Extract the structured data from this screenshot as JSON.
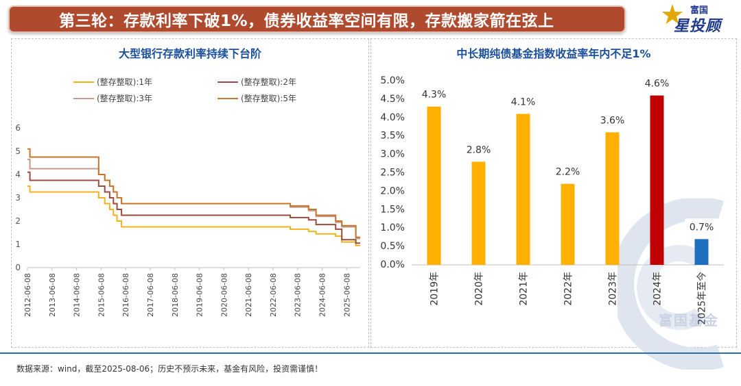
{
  "header": {
    "title": "第三轮：存款利率下破1%，债券收益率空间有限，存款搬家箭在弦上",
    "brand_top": "富国",
    "brand_main": "星投顾"
  },
  "watermark": {
    "text": "富国基金"
  },
  "footer": {
    "source": "数据来源：wind，截至2025-08-06；历史不预示未来，基金有风险，投资需谨慎！"
  },
  "chart_data": [
    {
      "type": "line",
      "title": "大型银行存款利率持续下台阶",
      "ylim": [
        0,
        6
      ],
      "yticks": [
        "0",
        "1",
        "2",
        "3",
        "4",
        "5",
        "6"
      ],
      "xticks": [
        "2012-06-08",
        "2013-06-08",
        "2014-06-08",
        "2015-06-08",
        "2016-06-08",
        "2017-06-08",
        "2018-06-08",
        "2019-06-08",
        "2020-06-08",
        "2021-06-08",
        "2022-06-08",
        "2023-06-08",
        "2024-06-08",
        "2025-06-08"
      ],
      "series": [
        {
          "name": "(整存整取):1年",
          "color": "#f2b21b",
          "points": [
            [
              2012.0,
              3.5
            ],
            [
              2012.1,
              3.25
            ],
            [
              2014.9,
              3.0
            ],
            [
              2015.15,
              2.75
            ],
            [
              2015.35,
              2.5
            ],
            [
              2015.5,
              2.25
            ],
            [
              2015.65,
              2.0
            ],
            [
              2015.83,
              1.75
            ],
            [
              2022.7,
              1.65
            ],
            [
              2023.45,
              1.55
            ],
            [
              2023.75,
              1.45
            ],
            [
              2024.55,
              1.35
            ],
            [
              2024.8,
              1.1
            ],
            [
              2025.37,
              0.95
            ]
          ]
        },
        {
          "name": "(整存整取):2年",
          "color": "#9c4a3e",
          "points": [
            [
              2012.0,
              4.1
            ],
            [
              2012.1,
              3.75
            ],
            [
              2014.9,
              3.5
            ],
            [
              2015.15,
              3.25
            ],
            [
              2015.35,
              3.0
            ],
            [
              2015.5,
              2.75
            ],
            [
              2015.65,
              2.5
            ],
            [
              2015.83,
              2.25
            ],
            [
              2022.7,
              2.15
            ],
            [
              2023.45,
              2.05
            ],
            [
              2023.75,
              1.85
            ],
            [
              2024.55,
              1.65
            ],
            [
              2024.8,
              1.2
            ],
            [
              2025.37,
              1.05
            ]
          ]
        },
        {
          "name": "(整存整取):3年",
          "color": "#c49a8c",
          "points": [
            [
              2012.0,
              4.65
            ],
            [
              2012.1,
              4.25
            ],
            [
              2014.9,
              4.0
            ],
            [
              2015.15,
              3.75
            ],
            [
              2015.35,
              3.5
            ],
            [
              2015.5,
              3.25
            ],
            [
              2015.65,
              3.0
            ],
            [
              2015.83,
              2.75
            ],
            [
              2022.7,
              2.6
            ],
            [
              2023.45,
              2.45
            ],
            [
              2023.75,
              2.2
            ],
            [
              2024.55,
              1.95
            ],
            [
              2024.8,
              1.75
            ],
            [
              2025.37,
              1.25
            ]
          ]
        },
        {
          "name": "(整存整取):5年",
          "color": "#c8752b",
          "points": [
            [
              2012.0,
              5.1
            ],
            [
              2012.1,
              4.75
            ],
            [
              2014.9,
              4.0
            ],
            [
              2015.15,
              3.75
            ],
            [
              2015.35,
              3.5
            ],
            [
              2015.5,
              3.25
            ],
            [
              2015.65,
              3.0
            ],
            [
              2015.83,
              2.75
            ],
            [
              2022.7,
              2.65
            ],
            [
              2023.45,
              2.5
            ],
            [
              2023.75,
              2.25
            ],
            [
              2024.55,
              2.0
            ],
            [
              2024.8,
              1.8
            ],
            [
              2025.37,
              1.3
            ]
          ]
        }
      ]
    },
    {
      "type": "bar",
      "title": "中长期纯债基金指数收益率年内不足1%",
      "categories": [
        "2019年",
        "2020年",
        "2021年",
        "2022年",
        "2023年",
        "2024年",
        "2025年至今"
      ],
      "values": [
        4.3,
        2.8,
        4.1,
        2.2,
        3.6,
        4.6,
        0.7
      ],
      "labels": [
        "4.3%",
        "2.8%",
        "4.1%",
        "2.2%",
        "3.6%",
        "4.6%",
        "0.7%"
      ],
      "colors": [
        "#ffb000",
        "#ffb000",
        "#ffb000",
        "#ffb000",
        "#ffb000",
        "#c00000",
        "#1f6fc0"
      ],
      "ylim": [
        0,
        5
      ],
      "yticks": [
        "0.0%",
        "0.5%",
        "1.0%",
        "1.5%",
        "2.0%",
        "2.5%",
        "3.0%",
        "3.5%",
        "4.0%",
        "4.5%",
        "5.0%"
      ]
    }
  ]
}
